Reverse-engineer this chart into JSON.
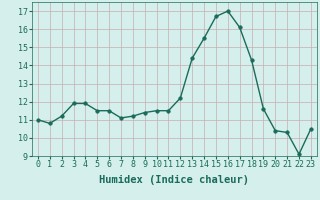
{
  "x": [
    0,
    1,
    2,
    3,
    4,
    5,
    6,
    7,
    8,
    9,
    10,
    11,
    12,
    13,
    14,
    15,
    16,
    17,
    18,
    19,
    20,
    21,
    22,
    23
  ],
  "y": [
    11.0,
    10.8,
    11.2,
    11.9,
    11.9,
    11.5,
    11.5,
    11.1,
    11.2,
    11.4,
    11.5,
    11.5,
    12.2,
    14.4,
    15.5,
    16.7,
    17.0,
    16.1,
    14.3,
    11.6,
    10.4,
    10.3,
    9.1,
    10.5
  ],
  "line_color": "#1a6b5a",
  "marker": "o",
  "markersize": 2.5,
  "linewidth": 1.0,
  "bg_color": "#d5f0ec",
  "grid_color": "#c8adb0",
  "xlabel": "Humidex (Indice chaleur)",
  "xlabel_fontsize": 7.5,
  "ylim": [
    9,
    17.5
  ],
  "xlim": [
    -0.5,
    23.5
  ],
  "yticks": [
    9,
    10,
    11,
    12,
    13,
    14,
    15,
    16,
    17
  ],
  "xtick_labels": [
    "0",
    "1",
    "2",
    "3",
    "4",
    "5",
    "6",
    "7",
    "8",
    "9",
    "10",
    "11",
    "12",
    "13",
    "14",
    "15",
    "16",
    "17",
    "18",
    "19",
    "20",
    "21",
    "22",
    "23"
  ],
  "tick_fontsize": 6.0,
  "tick_color": "#1a6b5a",
  "label_color": "#1a6b5a"
}
